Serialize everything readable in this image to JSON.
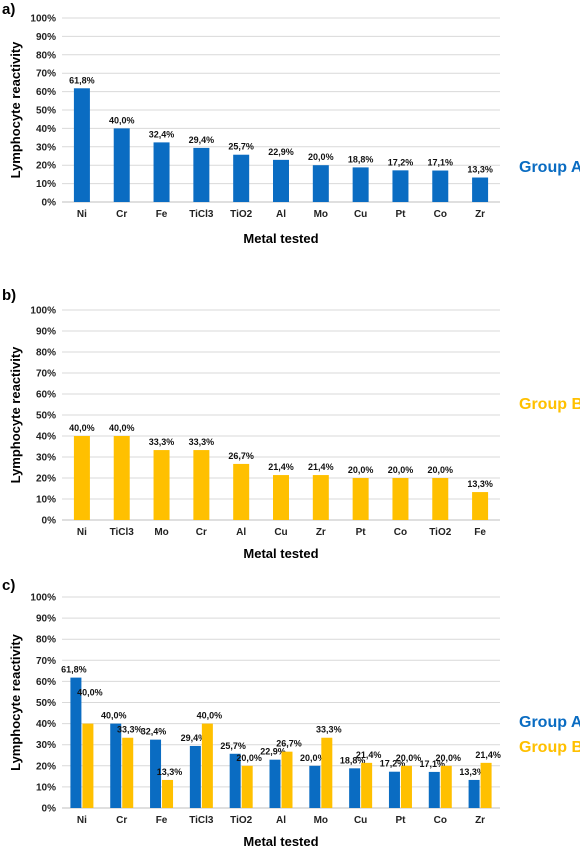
{
  "colors": {
    "groupA": "#0A6CC2",
    "groupB": "#FFC000",
    "grid": "#D9D9D9",
    "axis": "#BFBFBF"
  },
  "chart_data": [
    {
      "panel": "a)",
      "type": "bar",
      "xlabel": "Metal tested",
      "ylabel": "Lymphocyte reactivity",
      "ylim": [
        0,
        100
      ],
      "yticks": [
        "0%",
        "10%",
        "20%",
        "30%",
        "40%",
        "50%",
        "60%",
        "70%",
        "80%",
        "90%",
        "100%"
      ],
      "grid": true,
      "legend_position": "right",
      "categories": [
        "Ni",
        "Cr",
        "Fe",
        "TiCl3",
        "TiO2",
        "Al",
        "Mo",
        "Cu",
        "Pt",
        "Co",
        "Zr"
      ],
      "series": [
        {
          "name": "Group A",
          "color": "#0A6CC2",
          "values": [
            61.8,
            40.0,
            32.4,
            29.4,
            25.7,
            22.9,
            20.0,
            18.8,
            17.2,
            17.1,
            13.3
          ],
          "labels": [
            "61,8%",
            "40,0%",
            "32,4%",
            "29,4%",
            "25,7%",
            "22,9%",
            "20,0%",
            "18,8%",
            "17,2%",
            "17,1%",
            "13,3%"
          ]
        }
      ]
    },
    {
      "panel": "b)",
      "type": "bar",
      "xlabel": "Metal tested",
      "ylabel": "Lymphocyte reactivity",
      "ylim": [
        0,
        100
      ],
      "yticks": [
        "0%",
        "10%",
        "20%",
        "30%",
        "40%",
        "50%",
        "60%",
        "70%",
        "80%",
        "90%",
        "100%"
      ],
      "grid": true,
      "legend_position": "right",
      "categories": [
        "Ni",
        "TiCl3",
        "Mo",
        "Cr",
        "Al",
        "Cu",
        "Zr",
        "Pt",
        "Co",
        "TiO2",
        "Fe"
      ],
      "series": [
        {
          "name": "Group B",
          "color": "#FFC000",
          "values": [
            40.0,
            40.0,
            33.3,
            33.3,
            26.7,
            21.4,
            21.4,
            20.0,
            20.0,
            20.0,
            13.3
          ],
          "labels": [
            "40,0%",
            "40,0%",
            "33,3%",
            "33,3%",
            "26,7%",
            "21,4%",
            "21,4%",
            "20,0%",
            "20,0%",
            "20,0%",
            "13,3%"
          ]
        }
      ]
    },
    {
      "panel": "c)",
      "type": "bar",
      "xlabel": "Metal tested",
      "ylabel": "Lymphocyte reactivity",
      "ylim": [
        0,
        100
      ],
      "yticks": [
        "0%",
        "10%",
        "20%",
        "30%",
        "40%",
        "50%",
        "60%",
        "70%",
        "80%",
        "90%",
        "100%"
      ],
      "grid": true,
      "legend_position": "right",
      "categories": [
        "Ni",
        "Cr",
        "Fe",
        "TiCl3",
        "TiO2",
        "Al",
        "Mo",
        "Cu",
        "Pt",
        "Co",
        "Zr"
      ],
      "series": [
        {
          "name": "Group A",
          "color": "#0A6CC2",
          "values": [
            61.8,
            40.0,
            32.4,
            29.4,
            25.7,
            22.9,
            20.0,
            18.8,
            17.2,
            17.1,
            13.3
          ],
          "labels": [
            "61,8%",
            "40,0%",
            "32,4%",
            "29,4%",
            "25,7%",
            "22,9%",
            "20,0%",
            "18,8%",
            "17,2%",
            "17,1%",
            "13,3%"
          ]
        },
        {
          "name": "Group B",
          "color": "#FFC000",
          "values": [
            40.0,
            33.3,
            13.3,
            40.0,
            20.0,
            26.7,
            33.3,
            21.4,
            20.0,
            20.0,
            21.4
          ],
          "labels": [
            "40,0%",
            "33,3%",
            "13,3%",
            "40,0%",
            "20,0%",
            "26,7%",
            "33,3%",
            "21,4%",
            "20,0%",
            "20,0%",
            "21,4%"
          ]
        }
      ]
    }
  ]
}
